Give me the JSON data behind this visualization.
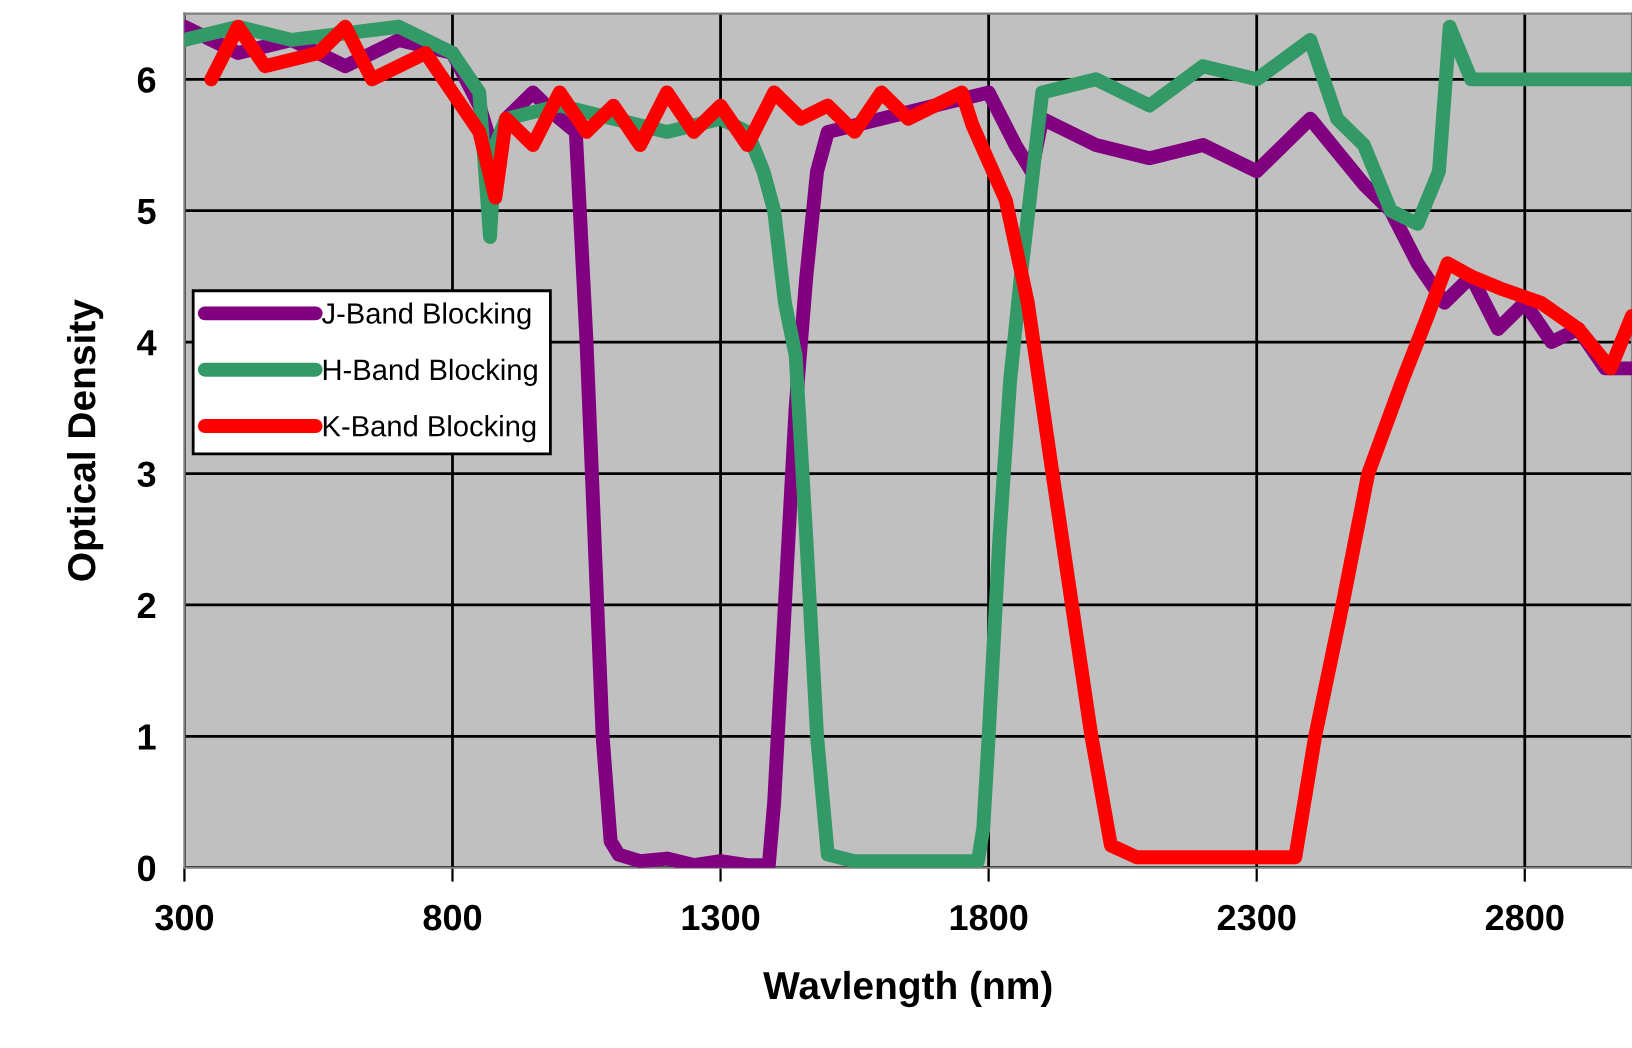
{
  "chart_data": {
    "type": "line",
    "xlabel": "Wavlength (nm)",
    "ylabel": "Optical Density",
    "xlim": [
      300,
      3000
    ],
    "xticks": [
      300,
      800,
      1300,
      1800,
      2300,
      2800
    ],
    "ylim": [
      0,
      6.5
    ],
    "yticks": [
      0,
      1,
      2,
      3,
      4,
      5,
      6
    ],
    "grid": true,
    "legend": "center left",
    "line_style": "solid",
    "marker": "none",
    "series": [
      {
        "name": "J-Band Blocking",
        "color": "#800080",
        "x": [
          300,
          400,
          500,
          600,
          700,
          800,
          850,
          880,
          900,
          950,
          1000,
          1030,
          1050,
          1065,
          1080,
          1095,
          1110,
          1150,
          1200,
          1250,
          1300,
          1350,
          1390,
          1400,
          1420,
          1440,
          1460,
          1480,
          1500,
          1600,
          1700,
          1800,
          1850,
          1880,
          1900,
          1950,
          2000,
          2100,
          2200,
          2300,
          2400,
          2500,
          2550,
          2600,
          2650,
          2700,
          2750,
          2800,
          2850,
          2900,
          2950,
          3000
        ],
        "values": [
          6.4,
          6.2,
          6.3,
          6.1,
          6.3,
          6.2,
          5.8,
          5.4,
          5.7,
          5.9,
          5.7,
          5.6,
          4.0,
          2.5,
          1.0,
          0.2,
          0.1,
          0.05,
          0.07,
          0.02,
          0.05,
          0.02,
          0.02,
          0.5,
          2.0,
          3.5,
          4.5,
          5.3,
          5.6,
          5.7,
          5.8,
          5.9,
          5.5,
          5.3,
          5.7,
          5.6,
          5.5,
          5.4,
          5.5,
          5.3,
          5.7,
          5.2,
          5.0,
          4.6,
          4.3,
          4.5,
          4.1,
          4.3,
          4.0,
          4.1,
          3.8,
          3.8
        ]
      },
      {
        "name": "H-Band Blocking",
        "color": "#339966",
        "x": [
          300,
          400,
          500,
          700,
          800,
          850,
          870,
          880,
          900,
          1000,
          1100,
          1200,
          1300,
          1350,
          1380,
          1400,
          1420,
          1440,
          1460,
          1480,
          1500,
          1550,
          1700,
          1780,
          1790,
          1800,
          1820,
          1840,
          1860,
          1880,
          1900,
          2000,
          2100,
          2200,
          2300,
          2400,
          2450,
          2500,
          2550,
          2600,
          2640,
          2660,
          2700,
          2800,
          3000
        ],
        "values": [
          6.3,
          6.4,
          6.3,
          6.4,
          6.2,
          5.9,
          4.8,
          5.5,
          5.7,
          5.8,
          5.7,
          5.6,
          5.7,
          5.6,
          5.3,
          5.0,
          4.3,
          3.9,
          2.5,
          1.0,
          0.1,
          0.05,
          0.05,
          0.05,
          0.3,
          1.0,
          2.5,
          3.7,
          4.5,
          5.2,
          5.9,
          6.0,
          5.8,
          6.1,
          6.0,
          6.3,
          5.7,
          5.5,
          5.0,
          4.9,
          5.3,
          6.4,
          6.0,
          6.0,
          6.0
        ]
      },
      {
        "name": "K-Band Blocking",
        "color": "#ff0000",
        "x": [
          350,
          400,
          450,
          550,
          600,
          650,
          750,
          850,
          880,
          900,
          950,
          1000,
          1050,
          1100,
          1150,
          1200,
          1250,
          1300,
          1350,
          1400,
          1450,
          1500,
          1550,
          1600,
          1650,
          1700,
          1750,
          1770,
          1832,
          1873,
          1917,
          1954,
          1991,
          2028,
          2076,
          2200,
          2300,
          2372,
          2409,
          2460,
          2508,
          2571,
          2619,
          2656,
          2700,
          2760,
          2830,
          2900,
          2960,
          3000
        ],
        "values": [
          6.0,
          6.4,
          6.1,
          6.2,
          6.4,
          6.0,
          6.2,
          5.6,
          5.1,
          5.7,
          5.5,
          5.9,
          5.6,
          5.8,
          5.5,
          5.9,
          5.6,
          5.8,
          5.5,
          5.9,
          5.7,
          5.8,
          5.6,
          5.9,
          5.7,
          5.8,
          5.9,
          5.65,
          5.08,
          4.3,
          3.06,
          2.04,
          1.02,
          0.17,
          0.08,
          0.08,
          0.08,
          0.08,
          1.0,
          2.0,
          3.0,
          3.7,
          4.2,
          4.6,
          4.5,
          4.4,
          4.3,
          4.1,
          3.8,
          4.2
        ]
      }
    ]
  }
}
